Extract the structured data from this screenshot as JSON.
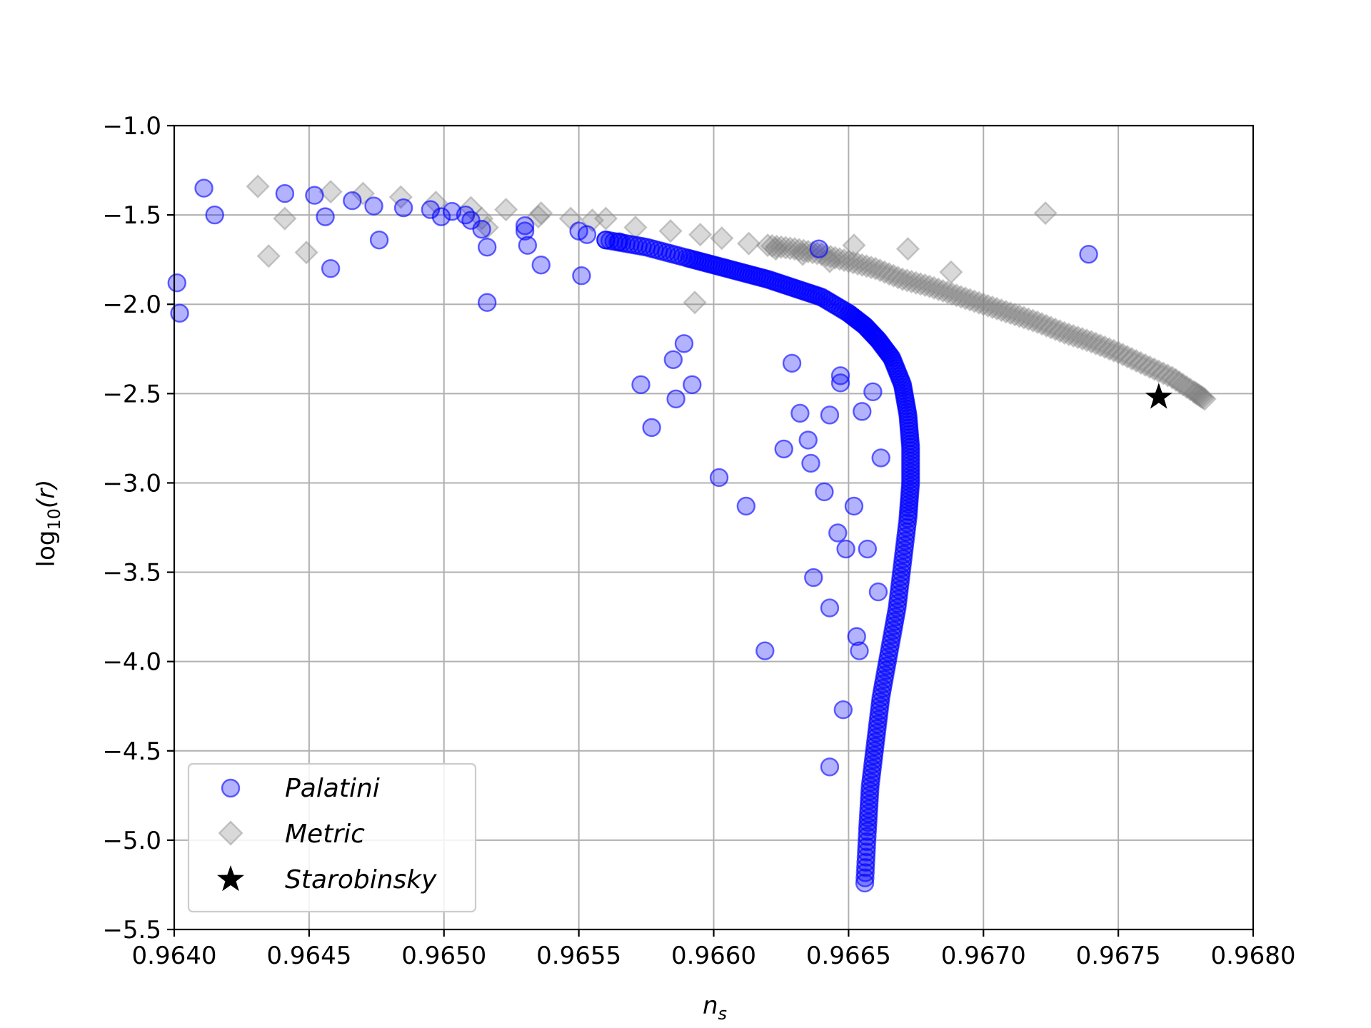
{
  "chart_data": {
    "type": "scatter",
    "title": "",
    "xlabel_main": "n",
    "xlabel_sub": "s",
    "ylabel_prefix": "log",
    "ylabel_sub": "10",
    "ylabel_suffix": "(r)",
    "xlim": [
      0.964,
      0.968
    ],
    "ylim": [
      -5.5,
      -1.0
    ],
    "x_ticks": [
      0.964,
      0.9645,
      0.965,
      0.9655,
      0.966,
      0.9665,
      0.967,
      0.9675,
      0.968
    ],
    "x_tick_labels": [
      "0.9640",
      "0.9645",
      "0.9650",
      "0.9655",
      "0.9660",
      "0.9665",
      "0.9670",
      "0.9675",
      "0.9680"
    ],
    "y_ticks": [
      -1.0,
      -1.5,
      -2.0,
      -2.5,
      -3.0,
      -3.5,
      -4.0,
      -4.5,
      -5.0,
      -5.5
    ],
    "y_tick_labels": [
      "−1.0",
      "−1.5",
      "−2.0",
      "−2.5",
      "−3.0",
      "−3.5",
      "−4.0",
      "−4.5",
      "−5.0",
      "−5.5"
    ],
    "grid": true,
    "legend_position": "bottom-left",
    "series": [
      {
        "name": "Palatini",
        "marker": "circle",
        "color": "#0000ff",
        "points": [
          [
            0.96411,
            -1.35
          ],
          [
            0.96415,
            -1.5
          ],
          [
            0.96401,
            -1.88
          ],
          [
            0.96402,
            -2.05
          ],
          [
            0.96441,
            -1.38
          ],
          [
            0.96452,
            -1.39
          ],
          [
            0.96456,
            -1.51
          ],
          [
            0.96458,
            -1.8
          ],
          [
            0.96466,
            -1.42
          ],
          [
            0.96474,
            -1.45
          ],
          [
            0.96476,
            -1.64
          ],
          [
            0.96485,
            -1.46
          ],
          [
            0.96495,
            -1.47
          ],
          [
            0.96499,
            -1.51
          ],
          [
            0.96503,
            -1.48
          ],
          [
            0.96508,
            -1.5
          ],
          [
            0.9651,
            -1.53
          ],
          [
            0.96514,
            -1.58
          ],
          [
            0.96516,
            -1.68
          ],
          [
            0.96516,
            -1.99
          ],
          [
            0.9653,
            -1.56
          ],
          [
            0.9653,
            -1.59
          ],
          [
            0.96531,
            -1.67
          ],
          [
            0.96536,
            -1.78
          ],
          [
            0.9655,
            -1.59
          ],
          [
            0.96551,
            -1.84
          ],
          [
            0.96553,
            -1.61
          ],
          [
            0.9656,
            -1.64
          ],
          [
            0.96565,
            -1.65
          ],
          [
            0.96573,
            -2.45
          ],
          [
            0.96577,
            -2.69
          ],
          [
            0.96585,
            -2.31
          ],
          [
            0.96586,
            -2.53
          ],
          [
            0.96589,
            -2.22
          ],
          [
            0.96592,
            -2.45
          ],
          [
            0.96602,
            -2.97
          ],
          [
            0.96612,
            -3.13
          ],
          [
            0.96619,
            -3.94
          ],
          [
            0.96626,
            -2.81
          ],
          [
            0.96629,
            -2.33
          ],
          [
            0.96632,
            -2.61
          ],
          [
            0.96635,
            -2.76
          ],
          [
            0.96636,
            -2.89
          ],
          [
            0.96637,
            -3.53
          ],
          [
            0.96641,
            -3.05
          ],
          [
            0.96643,
            -3.7
          ],
          [
            0.96643,
            -2.62
          ],
          [
            0.96646,
            -3.28
          ],
          [
            0.96648,
            -4.27
          ],
          [
            0.96643,
            -4.59
          ],
          [
            0.96649,
            -3.37
          ],
          [
            0.96652,
            -3.13
          ],
          [
            0.96653,
            -3.86
          ],
          [
            0.96654,
            -3.94
          ],
          [
            0.96657,
            -3.37
          ],
          [
            0.96661,
            -3.61
          ],
          [
            0.96639,
            -1.69
          ],
          [
            0.96739,
            -1.72
          ],
          [
            0.96647,
            -2.4
          ],
          [
            0.96647,
            -2.44
          ],
          [
            0.96655,
            -2.6
          ],
          [
            0.96659,
            -2.49
          ],
          [
            0.96662,
            -2.86
          ]
        ],
        "curve": [
          [
            0.9656,
            -1.64
          ],
          [
            0.96575,
            -1.68
          ],
          [
            0.9659,
            -1.74
          ],
          [
            0.966,
            -1.78
          ],
          [
            0.9661,
            -1.82
          ],
          [
            0.9662,
            -1.86
          ],
          [
            0.9663,
            -1.91
          ],
          [
            0.9664,
            -1.96
          ],
          [
            0.9665,
            -2.05
          ],
          [
            0.96656,
            -2.12
          ],
          [
            0.96661,
            -2.2
          ],
          [
            0.96666,
            -2.3
          ],
          [
            0.9667,
            -2.45
          ],
          [
            0.96672,
            -2.62
          ],
          [
            0.96673,
            -2.8
          ],
          [
            0.96673,
            -3.0
          ],
          [
            0.96672,
            -3.2
          ],
          [
            0.9667,
            -3.45
          ],
          [
            0.96668,
            -3.7
          ],
          [
            0.96665,
            -3.95
          ],
          [
            0.96662,
            -4.2
          ],
          [
            0.9666,
            -4.45
          ],
          [
            0.96658,
            -4.7
          ],
          [
            0.96657,
            -4.95
          ],
          [
            0.96656,
            -5.24
          ]
        ]
      },
      {
        "name": "Metric",
        "marker": "diamond",
        "color": "#808080",
        "points": [
          [
            0.96431,
            -1.34
          ],
          [
            0.96435,
            -1.73
          ],
          [
            0.96441,
            -1.52
          ],
          [
            0.96449,
            -1.71
          ],
          [
            0.96458,
            -1.37
          ],
          [
            0.9647,
            -1.38
          ],
          [
            0.96484,
            -1.4
          ],
          [
            0.96497,
            -1.43
          ],
          [
            0.9651,
            -1.46
          ],
          [
            0.96514,
            -1.52
          ],
          [
            0.96516,
            -1.57
          ],
          [
            0.96523,
            -1.47
          ],
          [
            0.96535,
            -1.51
          ],
          [
            0.96536,
            -1.49
          ],
          [
            0.96547,
            -1.52
          ],
          [
            0.96555,
            -1.53
          ],
          [
            0.9656,
            -1.52
          ],
          [
            0.96571,
            -1.57
          ],
          [
            0.96584,
            -1.59
          ],
          [
            0.96593,
            -1.99
          ],
          [
            0.96595,
            -1.61
          ],
          [
            0.96603,
            -1.63
          ],
          [
            0.96613,
            -1.66
          ],
          [
            0.96623,
            -1.69
          ],
          [
            0.96633,
            -1.72
          ],
          [
            0.96643,
            -1.76
          ],
          [
            0.96652,
            -1.67
          ],
          [
            0.96672,
            -1.69
          ],
          [
            0.96688,
            -1.82
          ],
          [
            0.96723,
            -1.49
          ]
        ],
        "curve": [
          [
            0.9662,
            -1.67
          ],
          [
            0.9663,
            -1.69
          ],
          [
            0.9664,
            -1.72
          ],
          [
            0.9665,
            -1.76
          ],
          [
            0.9666,
            -1.8
          ],
          [
            0.9667,
            -1.86
          ],
          [
            0.9668,
            -1.9
          ],
          [
            0.9669,
            -1.95
          ],
          [
            0.967,
            -2.0
          ],
          [
            0.9671,
            -2.05
          ],
          [
            0.9672,
            -2.1
          ],
          [
            0.9673,
            -2.16
          ],
          [
            0.9674,
            -2.21
          ],
          [
            0.9675,
            -2.27
          ],
          [
            0.9676,
            -2.34
          ],
          [
            0.9677,
            -2.41
          ],
          [
            0.96778,
            -2.49
          ],
          [
            0.96782,
            -2.53
          ]
        ]
      },
      {
        "name": "Starobinsky",
        "marker": "star",
        "color": "#000000",
        "points": [
          [
            0.96765,
            -2.52
          ]
        ]
      }
    ]
  }
}
